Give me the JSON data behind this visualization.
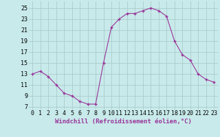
{
  "x": [
    0,
    1,
    2,
    3,
    4,
    5,
    6,
    7,
    8,
    9,
    10,
    11,
    12,
    13,
    14,
    15,
    16,
    17,
    18,
    19,
    20,
    21,
    22,
    23
  ],
  "y": [
    13,
    13.5,
    12.5,
    11,
    9.5,
    9,
    8,
    7.5,
    7.5,
    15,
    21.5,
    23,
    24,
    24,
    24.5,
    25,
    24.5,
    23.5,
    19,
    16.5,
    15.5,
    13,
    12,
    11.5
  ],
  "line_color": "#993399",
  "marker": "+",
  "marker_size": 3,
  "bg_color": "#c8eaea",
  "grid_color": "#aacccc",
  "xlabel": "Windchill (Refroidissement éolien,°C)",
  "xlabel_fontsize": 6.5,
  "ylabel_ticks": [
    7,
    9,
    11,
    13,
    15,
    17,
    19,
    21,
    23,
    25
  ],
  "xlim": [
    -0.5,
    23.5
  ],
  "ylim": [
    6.5,
    26.2
  ],
  "tick_fontsize": 6.0
}
